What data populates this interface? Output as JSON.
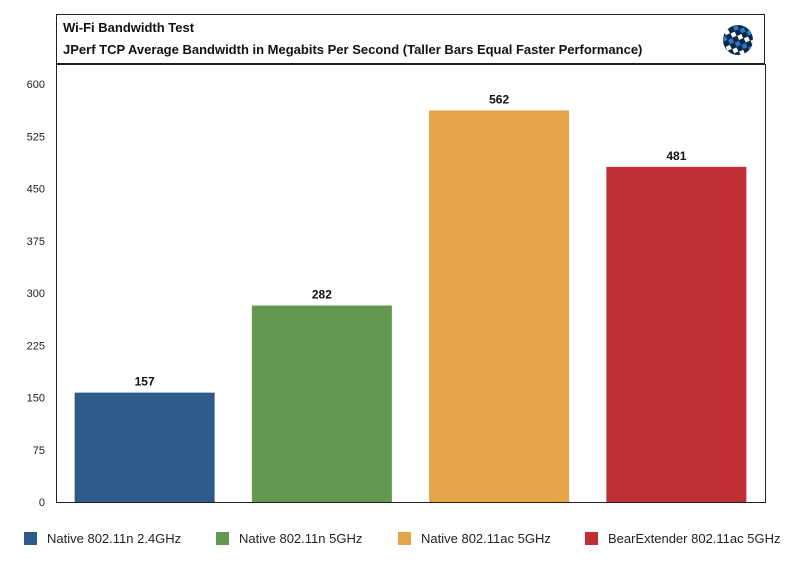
{
  "chart_data": {
    "type": "bar",
    "title": "Wi-Fi Bandwidth Test",
    "subtitle": "JPerf TCP Average Bandwidth in Megabits Per Second (Taller Bars Equal Faster Performance)",
    "categories": [
      "Native 802.11n 2.4GHz",
      "Native 802.11n 5GHz",
      "Native 802.11ac 5GHz",
      "BearExtender 802.11ac 5GHz"
    ],
    "values": [
      157,
      282,
      562,
      481
    ],
    "colors": [
      "#2e5a8c",
      "#62994f",
      "#e6a44a",
      "#bf2f36"
    ],
    "ylim": [
      0,
      600
    ],
    "yticks": [
      0,
      75,
      150,
      225,
      300,
      375,
      450,
      525,
      600
    ],
    "grid": false,
    "legend": "bottom",
    "xlabel": "",
    "ylabel": ""
  },
  "logo": {
    "icon": "globe-logo-icon",
    "colors": [
      "#0b2a4a",
      "#2f78c4",
      "#ffffff"
    ]
  }
}
